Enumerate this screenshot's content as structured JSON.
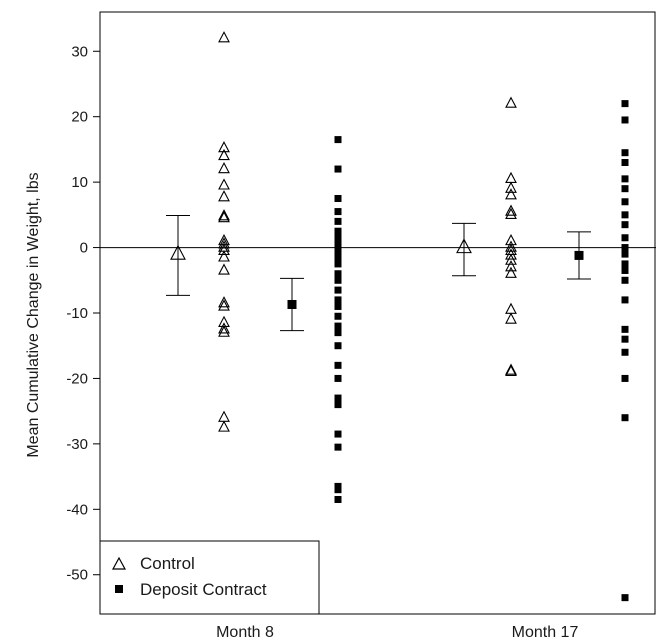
{
  "chart_data": {
    "type": "scatter",
    "title": "",
    "ylabel": "Mean Cumulative Change in Weight, lbs",
    "xlabel": "",
    "ylim": [
      -56,
      36
    ],
    "yticks": [
      30,
      20,
      10,
      0,
      -10,
      -20,
      -30,
      -40,
      -50
    ],
    "reference_line": 0,
    "categories": [
      "Month 8",
      "Month 17"
    ],
    "legend": {
      "position": "bottom-left",
      "entries": [
        {
          "label": "Control",
          "marker": "open-triangle"
        },
        {
          "label": "Deposit Contract",
          "marker": "filled-square"
        }
      ]
    },
    "series": [
      {
        "name": "Control",
        "marker": "open-triangle",
        "groups": [
          {
            "category": "Month 8",
            "mean": -1,
            "ci": [
              -7.3,
              4.9
            ],
            "points": [
              32,
              15.2,
              14,
              12,
              9.5,
              7.7,
              4.8,
              4.5,
              1,
              0.5,
              0,
              -0.5,
              -1.5,
              -3.5,
              -8.5,
              -9,
              -11.5,
              -12.5,
              -13,
              -26,
              -27.5
            ]
          },
          {
            "category": "Month 17",
            "mean": 0,
            "ci": [
              -4.3,
              3.7
            ],
            "points": [
              22,
              10.5,
              9,
              8,
              5.5,
              5,
              1,
              0,
              -0.5,
              -1.2,
              -2,
              -3,
              -4,
              -9.5,
              -11,
              -18.8,
              -19
            ]
          }
        ]
      },
      {
        "name": "Deposit Contract",
        "marker": "filled-square",
        "groups": [
          {
            "category": "Month 8",
            "mean": -8.7,
            "ci": [
              -12.7,
              -4.7
            ],
            "points": [
              16.5,
              12,
              7.5,
              5.5,
              4,
              2.5,
              1.5,
              0.5,
              -0.5,
              -1.5,
              -2.5,
              -4,
              -5,
              -6.5,
              -8,
              -9,
              -10.5,
              -12,
              -13,
              -15,
              -18,
              -20,
              -23,
              -24,
              -28.5,
              -30.5,
              -36.5,
              -37,
              -38.5
            ]
          },
          {
            "category": "Month 17",
            "mean": -1.2,
            "ci": [
              -4.8,
              2.4
            ],
            "points": [
              22,
              19.5,
              14.5,
              13,
              10.5,
              9,
              7,
              5,
              3.5,
              1.5,
              0,
              -1,
              -2.5,
              -3.5,
              -5,
              -8,
              -12.5,
              -14,
              -16,
              -20,
              -26,
              -53.5
            ]
          }
        ]
      }
    ]
  }
}
